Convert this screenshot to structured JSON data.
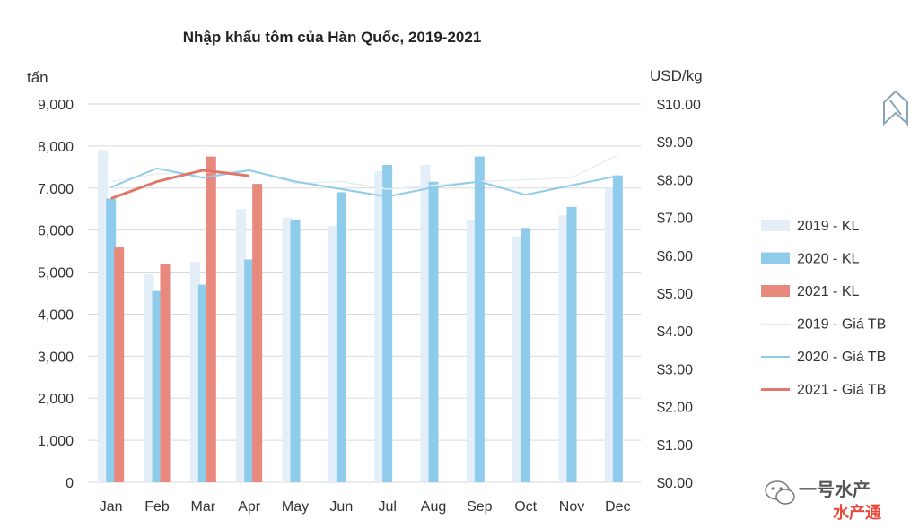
{
  "chart_data": {
    "type": "bar",
    "title": "Nhập khẩu tôm của Hàn Quốc, 2019-2021",
    "ylabel": "tấn",
    "y2label": "USD/kg",
    "categories": [
      "Jan",
      "Feb",
      "Mar",
      "Apr",
      "May",
      "Jun",
      "Jul",
      "Aug",
      "Sep",
      "Oct",
      "Nov",
      "Dec"
    ],
    "ylim": [
      0,
      9000
    ],
    "y2lim": [
      0,
      10
    ],
    "yticks": [
      "9,000",
      "8,000",
      "7,000",
      "6,000",
      "5,000",
      "4,000",
      "3,000",
      "2,000",
      "1,000",
      "0"
    ],
    "y2ticks": [
      "$10.00",
      "$9.00",
      "$8.00",
      "$7.00",
      "$6.00",
      "$5.00",
      "$4.00",
      "$3.00",
      "$2.00",
      "$1.00",
      "$0.00"
    ],
    "grid": "horizontal",
    "legend_position": "right",
    "bar_series": [
      {
        "name": "2019 -  KL",
        "color": "#e3eef9",
        "values": [
          7900,
          4950,
          5250,
          6500,
          6300,
          6100,
          7400,
          7550,
          6250,
          5850,
          6350,
          7000
        ]
      },
      {
        "name": "2020 -  KL",
        "color": "#8fcbeb",
        "values": [
          6750,
          4550,
          4700,
          5300,
          6250,
          6900,
          7550,
          7150,
          7750,
          6050,
          6550,
          7300
        ]
      },
      {
        "name": "2021 -   KL",
        "color": "#e8897d",
        "values": [
          5600,
          5200,
          7750,
          7100,
          null,
          null,
          null,
          null,
          null,
          null,
          null,
          null
        ]
      }
    ],
    "line_series": [
      {
        "name": "2019 -  Giá TB",
        "color": "#e9eef2",
        "values": [
          7.95,
          8.15,
          8.2,
          8.25,
          7.9,
          7.95,
          7.75,
          7.85,
          7.95,
          8.0,
          8.05,
          8.65
        ]
      },
      {
        "name": "2020 -   Giá TB",
        "color": "#8fcbeb",
        "values": [
          7.8,
          8.3,
          8.05,
          8.25,
          7.95,
          7.75,
          7.55,
          7.8,
          7.95,
          7.6,
          7.85,
          8.1
        ]
      },
      {
        "name": "2021 -    Giá TB",
        "color": "#e0776b",
        "values": [
          7.5,
          7.95,
          8.25,
          8.1,
          null,
          null,
          null,
          null,
          null,
          null,
          null,
          null
        ]
      }
    ]
  },
  "watermark": {
    "text": "一号水产",
    "subtext": "水产通",
    "icon": "logo-icon"
  }
}
